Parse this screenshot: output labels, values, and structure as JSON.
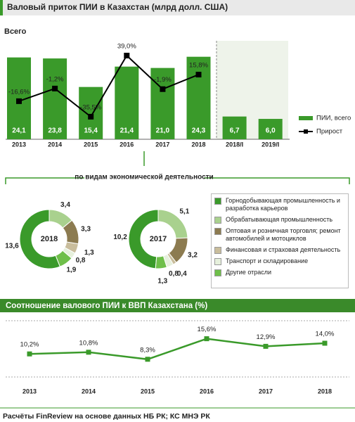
{
  "chart_data": [
    {
      "type": "bar_line",
      "title": "Валовый приток ПИИ в Казахстан (млрд долл. США)",
      "subtitle": "Всего",
      "categories": [
        "2013",
        "2014",
        "2015",
        "2016",
        "2017",
        "2018",
        "2018/I",
        "2019/I"
      ],
      "series": [
        {
          "name": "ПИИ, всего",
          "color": "#3a9a2a",
          "values": [
            24.1,
            23.8,
            15.4,
            21.4,
            21.0,
            24.3,
            6.7,
            6.0
          ],
          "value_labels": [
            "24,1",
            "23,8",
            "15,4",
            "21,4",
            "21,0",
            "24,3",
            "6,7",
            "6,0"
          ]
        },
        {
          "name": "Прирост",
          "color": "#000000",
          "axis": "y2",
          "values": [
            -16.6,
            -1.2,
            -35.5,
            39.0,
            -1.9,
            15.8,
            null,
            null
          ],
          "value_labels": [
            "-16,6%",
            "-1,2%",
            "-35,5%",
            "39,0%",
            "-1,9%",
            "15,8%",
            null,
            null
          ]
        }
      ],
      "ylim": [
        0,
        29
      ],
      "y2lim": [
        -63,
        57
      ]
    },
    {
      "type": "donut",
      "title": "по видам экономической деятельности",
      "categories": [
        "Горнодобывающая промышленность и разработка карьеров",
        "Обрабатывающая промышленность",
        "Оптовая и розничная торговля; ремонт автомобилей и мотоциклов",
        "Финансовая и страховая деятельность",
        "Транспорт и складирование",
        "Другие отрасли"
      ],
      "colors": [
        "#3a9a2a",
        "#a9d18e",
        "#8c7b50",
        "#c9bd9c",
        "#e6f0dc",
        "#6fbf4a"
      ],
      "series": [
        {
          "name": "2018",
          "values": [
            13.6,
            3.4,
            3.3,
            1.3,
            0.8,
            1.9
          ],
          "value_labels": [
            "13,6",
            "3,4",
            "3,3",
            "1,3",
            "0,8",
            "1,9"
          ]
        },
        {
          "name": "2017",
          "values": [
            10.2,
            5.1,
            3.2,
            0.4,
            0.8,
            1.3
          ],
          "value_labels": [
            "10,2",
            "5,1",
            "3,2",
            "0,4",
            "0,8",
            "1,3"
          ]
        }
      ]
    },
    {
      "type": "line",
      "title": "Соотношение валового ПИИ к ВВП Казахстана (%)",
      "categories": [
        "2013",
        "2014",
        "2015",
        "2016",
        "2017",
        "2018"
      ],
      "series": [
        {
          "color": "#3a9a2a",
          "values": [
            10.2,
            10.8,
            8.3,
            15.6,
            12.9,
            14.0
          ],
          "value_labels": [
            "10,2%",
            "10,8%",
            "8,3%",
            "15,6%",
            "12,9%",
            "14,0%"
          ]
        }
      ],
      "ylim": [
        2,
        22
      ]
    }
  ],
  "source": "Расчёты FinReview на основе данных НБ РК; КС МНЭ РК"
}
